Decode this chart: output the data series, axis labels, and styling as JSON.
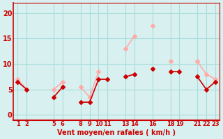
{
  "background_color": "#d8f0f0",
  "grid_color": "#aadddd",
  "line_color_moyen": "#cc0000",
  "line_color_rafales": "#ffaaaa",
  "marker_color_moyen": "#cc0000",
  "marker_color_rafales": "#ffaaaa",
  "x_positions": [
    1,
    2,
    3,
    4,
    5,
    6,
    7,
    8,
    9,
    10,
    11,
    12,
    13,
    14,
    15,
    16,
    17,
    18,
    19,
    20,
    21,
    22,
    23
  ],
  "vent_moyen": [
    6.5,
    5.0,
    null,
    null,
    3.5,
    5.5,
    null,
    2.5,
    2.5,
    7.0,
    7.0,
    null,
    7.5,
    8.0,
    null,
    9.0,
    null,
    8.5,
    8.5,
    null,
    7.5,
    5.0,
    6.5
  ],
  "vent_rafales": [
    7.0,
    5.0,
    null,
    null,
    5.0,
    6.5,
    null,
    5.5,
    3.5,
    8.5,
    null,
    null,
    13.0,
    15.5,
    null,
    17.5,
    null,
    10.5,
    null,
    null,
    10.5,
    8.0,
    7.0
  ],
  "xlabel": "Vent moyen/en rafales ( km/h )",
  "ylim": [
    -1,
    22
  ],
  "yticks": [
    0,
    5,
    10,
    15,
    20
  ],
  "x_display_labels": [
    "1",
    "2",
    "5",
    "6",
    "8",
    "9",
    "10",
    "11",
    "13",
    "14",
    "16",
    "18",
    "19",
    "21",
    "22",
    "23"
  ],
  "x_display_pos": [
    1,
    2,
    5,
    6,
    8,
    9,
    10,
    11,
    13,
    14,
    16,
    18,
    19,
    21,
    22,
    23
  ]
}
